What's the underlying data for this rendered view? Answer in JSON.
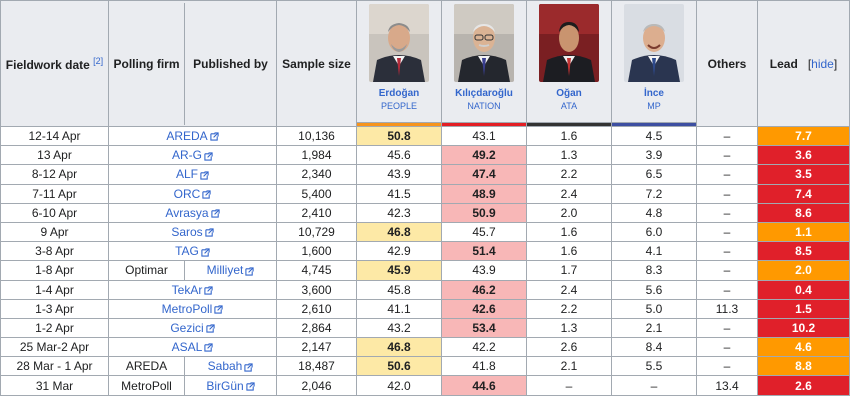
{
  "headers": {
    "fieldwork": "Fieldwork date",
    "fieldwork_ref": "[2]",
    "firm": "Polling firm",
    "published": "Published by",
    "sample": "Sample size",
    "others": "Others",
    "lead": "Lead",
    "hide": "hide"
  },
  "candidates": [
    {
      "name": "Erdoğan",
      "party": "PEOPLE",
      "color": "#f6941d"
    },
    {
      "name": "Kılıçdaroğlu",
      "party": "NATION",
      "color": "#e31e24"
    },
    {
      "name": "Oğan",
      "party": "ATA",
      "color": "#333333"
    },
    {
      "name": "İnce",
      "party": "MP",
      "color": "#3d4fa1"
    }
  ],
  "rows": [
    {
      "date": "12-14 Apr",
      "firm": "",
      "publisher": "AREDA",
      "sample": "10,136",
      "v1": "50.8",
      "v2": "43.1",
      "v3": "1.6",
      "v4": "4.5",
      "others": "–",
      "lead": "7.7",
      "winner": 1,
      "lead_color": "#ff9900"
    },
    {
      "date": "13 Apr",
      "firm": "",
      "publisher": "AR-G",
      "sample": "1,984",
      "v1": "45.6",
      "v2": "49.2",
      "v3": "1.3",
      "v4": "3.9",
      "others": "–",
      "lead": "3.6",
      "winner": 2,
      "lead_color": "#e0202a"
    },
    {
      "date": "8-12 Apr",
      "firm": "",
      "publisher": "ALF",
      "sample": "2,340",
      "v1": "43.9",
      "v2": "47.4",
      "v3": "2.2",
      "v4": "6.5",
      "others": "–",
      "lead": "3.5",
      "winner": 2,
      "lead_color": "#e0202a"
    },
    {
      "date": "7-11 Apr",
      "firm": "",
      "publisher": "ORC",
      "sample": "5,400",
      "v1": "41.5",
      "v2": "48.9",
      "v3": "2.4",
      "v4": "7.2",
      "others": "–",
      "lead": "7.4",
      "winner": 2,
      "lead_color": "#e0202a"
    },
    {
      "date": "6-10 Apr",
      "firm": "",
      "publisher": "Avrasya",
      "sample": "2,410",
      "v1": "42.3",
      "v2": "50.9",
      "v3": "2.0",
      "v4": "4.8",
      "others": "–",
      "lead": "8.6",
      "winner": 2,
      "lead_color": "#e0202a"
    },
    {
      "date": "9 Apr",
      "firm": "",
      "publisher": "Saros",
      "sample": "10,729",
      "v1": "46.8",
      "v2": "45.7",
      "v3": "1.6",
      "v4": "6.0",
      "others": "–",
      "lead": "1.1",
      "winner": 1,
      "lead_color": "#ff9900"
    },
    {
      "date": "3-8 Apr",
      "firm": "",
      "publisher": "TAG",
      "sample": "1,600",
      "v1": "42.9",
      "v2": "51.4",
      "v3": "1.6",
      "v4": "4.1",
      "others": "–",
      "lead": "8.5",
      "winner": 2,
      "lead_color": "#e0202a"
    },
    {
      "date": "1-8 Apr",
      "firm": "Optimar",
      "publisher": "Milliyet",
      "sample": "4,745",
      "v1": "45.9",
      "v2": "43.9",
      "v3": "1.7",
      "v4": "8.3",
      "others": "–",
      "lead": "2.0",
      "winner": 1,
      "lead_color": "#ff9900"
    },
    {
      "date": "1-4 Apr",
      "firm": "",
      "publisher": "TekAr",
      "sample": "3,600",
      "v1": "45.8",
      "v2": "46.2",
      "v3": "2.4",
      "v4": "5.6",
      "others": "–",
      "lead": "0.4",
      "winner": 2,
      "lead_color": "#e0202a"
    },
    {
      "date": "1-3 Apr",
      "firm": "",
      "publisher": "MetroPoll",
      "sample": "2,610",
      "v1": "41.1",
      "v2": "42.6",
      "v3": "2.2",
      "v4": "5.0",
      "others": "11.3",
      "lead": "1.5",
      "winner": 2,
      "lead_color": "#e0202a"
    },
    {
      "date": "1-2 Apr",
      "firm": "",
      "publisher": "Gezici",
      "sample": "2,864",
      "v1": "43.2",
      "v2": "53.4",
      "v3": "1.3",
      "v4": "2.1",
      "others": "–",
      "lead": "10.2",
      "winner": 2,
      "lead_color": "#e0202a"
    },
    {
      "date": "25 Mar-2 Apr",
      "firm": "",
      "publisher": "ASAL",
      "sample": "2,147",
      "v1": "46.8",
      "v2": "42.2",
      "v3": "2.6",
      "v4": "8.4",
      "others": "–",
      "lead": "4.6",
      "winner": 1,
      "lead_color": "#ff9900"
    },
    {
      "date": "28 Mar - 1 Apr",
      "firm": "AREDA",
      "publisher": "Sabah",
      "sample": "18,487",
      "v1": "50.6",
      "v2": "41.8",
      "v3": "2.1",
      "v4": "5.5",
      "others": "–",
      "lead": "8.8",
      "winner": 1,
      "lead_color": "#ff9900"
    },
    {
      "date": "31 Mar",
      "firm": "MetroPoll",
      "publisher": "BirGün",
      "sample": "2,046",
      "v1": "42.0",
      "v2": "44.6",
      "v3": "–",
      "v4": "–",
      "others": "13.4",
      "lead": "2.6",
      "winner": 2,
      "lead_color": "#e0202a"
    }
  ]
}
